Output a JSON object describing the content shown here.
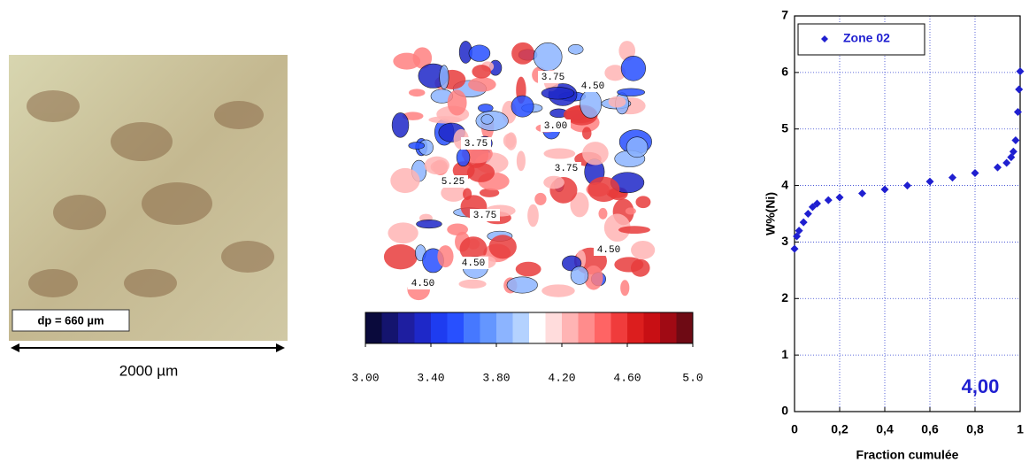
{
  "micrograph": {
    "scale_label": "dp = 660 µm",
    "length_label": "2000 µm"
  },
  "contour_map": {
    "labels": [
      "3.75",
      "4.50",
      "3.00",
      "3.75",
      "3.75",
      "5.25",
      "3.75",
      "4.50",
      "4.50",
      "4.50"
    ]
  },
  "chart_data": [
    {
      "type": "colorbar",
      "colors": [
        "#0a0a3c",
        "#14146e",
        "#1e1ea0",
        "#1e28c8",
        "#1e3cf0",
        "#2850ff",
        "#4678ff",
        "#6496ff",
        "#8cb4ff",
        "#b4d2ff",
        "#ffffff",
        "#ffdcdc",
        "#ffb4b4",
        "#ff8c8c",
        "#ff6464",
        "#f03c3c",
        "#dc1e1e",
        "#c80f14",
        "#a00a14",
        "#6e0a14"
      ],
      "xlim": [
        3.0,
        5.0
      ],
      "xticks": [
        {
          "value": 3.0,
          "label": "3.00"
        },
        {
          "value": 3.4,
          "label": "3.40"
        },
        {
          "value": 3.8,
          "label": "3.80"
        },
        {
          "value": 4.2,
          "label": "4.20"
        },
        {
          "value": 4.6,
          "label": "4.60"
        },
        {
          "value": 5.0,
          "label": "5.0"
        }
      ]
    },
    {
      "type": "scatter",
      "x_label": "Fraction cumulée",
      "y_label": "W%(Ni)",
      "annotation": "4,00",
      "xlim": [
        0,
        1
      ],
      "ylim": [
        0,
        7
      ],
      "xticks": [
        0,
        {
          "value": 0.2,
          "label": "0,2"
        },
        {
          "value": 0.4,
          "label": "0,4"
        },
        {
          "value": 0.6,
          "label": "0,6"
        },
        {
          "value": 0.8,
          "label": "0,8"
        },
        1
      ],
      "yticks": [
        0,
        1,
        2,
        3,
        4,
        5,
        6,
        7
      ],
      "grid": true,
      "legend": "top-left",
      "x": [
        0,
        0.01,
        0.02,
        0.04,
        0.06,
        0.08,
        0.1,
        0.15,
        0.2,
        0.3,
        0.4,
        0.5,
        0.6,
        0.7,
        0.8,
        0.9,
        0.94,
        0.96,
        0.97,
        0.98,
        0.99,
        0.995,
        1
      ],
      "series": [
        {
          "name": "Zone 02",
          "color": "#1f1fd0",
          "values": [
            2.88,
            3.1,
            3.2,
            3.35,
            3.5,
            3.62,
            3.68,
            3.74,
            3.79,
            3.86,
            3.93,
            4.0,
            4.07,
            4.14,
            4.22,
            4.32,
            4.4,
            4.5,
            4.6,
            4.8,
            5.3,
            5.7,
            6.02
          ]
        }
      ]
    }
  ]
}
